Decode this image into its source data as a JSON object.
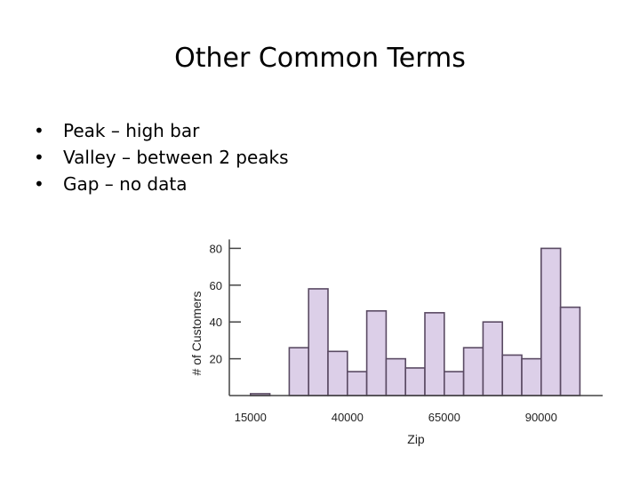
{
  "slide": {
    "title": "Other Common Terms",
    "bullets": [
      "Peak – high bar",
      "Valley – between 2 peaks",
      "Gap – no data"
    ],
    "bullet_glyph": "•"
  },
  "chart_data": {
    "type": "bar",
    "xlabel": "Zip",
    "ylabel": "# of Customers",
    "ylim": [
      0,
      80
    ],
    "yticks": [
      20,
      40,
      60,
      80
    ],
    "xticks": [
      15000,
      40000,
      65000,
      90000
    ],
    "xtick_labels": [
      "15000",
      "40000",
      "65000",
      "90000"
    ],
    "bin_width": 5000,
    "bin_start": 10000,
    "values": [
      0,
      1,
      0,
      26,
      58,
      24,
      13,
      46,
      20,
      15,
      45,
      13,
      26,
      40,
      22,
      20,
      80,
      48
    ],
    "bar_fill": "#dccfe8",
    "bar_stroke": "#5a4a63",
    "grid": false
  }
}
